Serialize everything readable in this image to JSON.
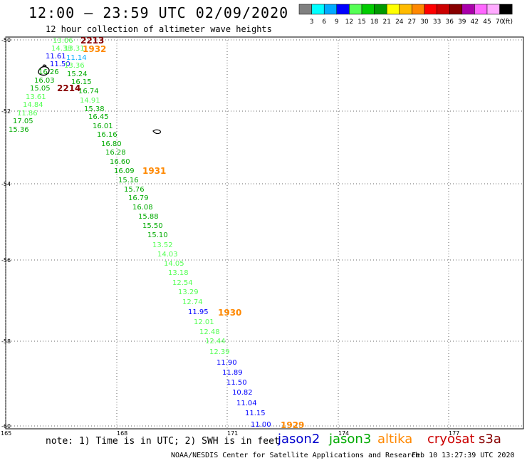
{
  "header": {
    "title": "12:00 – 23:59 UTC 02/09/2020",
    "subtitle": "12 hour collection of altimeter wave heights"
  },
  "colorbar": {
    "colors": [
      "#808080",
      "#00ffff",
      "#00aaff",
      "#0000ff",
      "#55ff55",
      "#00cc00",
      "#009900",
      "#ffff00",
      "#ffbb00",
      "#ff8800",
      "#ff0000",
      "#cc0000",
      "#880000",
      "#aa00aa",
      "#ff66ff",
      "#ffaaff",
      "#000000"
    ],
    "labels": [
      "3",
      "6",
      "9",
      "12",
      "15",
      "18",
      "21",
      "24",
      "27",
      "30",
      "33",
      "36",
      "39",
      "42",
      "45",
      "70",
      "(ft)"
    ]
  },
  "axes": {
    "lat_labels": [
      "-50",
      "-52",
      "-54",
      "-56",
      "-58",
      "-60"
    ],
    "lon_labels": [
      "165",
      "168",
      "171",
      "174",
      "177"
    ]
  },
  "track": {
    "points": [
      {
        "v": "13.06",
        "c": "#55ff55"
      },
      {
        "v": "14.38",
        "c": "#55ff55"
      },
      {
        "v": "11.61",
        "c": "#0000ff"
      },
      {
        "v": "11.50",
        "c": "#0000ff"
      },
      {
        "v": "16.26",
        "c": "#00aa00"
      },
      {
        "v": "16.03",
        "c": "#00aa00"
      },
      {
        "v": "15.05",
        "c": "#00aa00"
      },
      {
        "v": "13.61",
        "c": "#55ff55"
      },
      {
        "v": "14.84",
        "c": "#55ff55"
      },
      {
        "v": "11.86",
        "c": "#55ff55"
      },
      {
        "v": "17.05",
        "c": "#00aa00"
      },
      {
        "v": "15.36",
        "c": "#00aa00"
      },
      {
        "v": "13.31",
        "c": "#55ff55"
      },
      {
        "v": "11.14",
        "c": "#00aaff"
      },
      {
        "v": "13.36",
        "c": "#55ff55"
      },
      {
        "v": "15.24",
        "c": "#00aa00"
      },
      {
        "v": "16.15",
        "c": "#00aa00"
      },
      {
        "v": "16.74",
        "c": "#00aa00"
      },
      {
        "v": "14.91",
        "c": "#55ff55"
      },
      {
        "v": "15.38",
        "c": "#00aa00"
      },
      {
        "v": "16.45",
        "c": "#00aa00"
      },
      {
        "v": "16.01",
        "c": "#00aa00"
      },
      {
        "v": "16.16",
        "c": "#00aa00"
      },
      {
        "v": "16.80",
        "c": "#00aa00"
      },
      {
        "v": "16.28",
        "c": "#00aa00"
      },
      {
        "v": "16.60",
        "c": "#00aa00"
      },
      {
        "v": "16.09",
        "c": "#00aa00"
      },
      {
        "v": "15.16",
        "c": "#00aa00"
      },
      {
        "v": "15.76",
        "c": "#00aa00"
      },
      {
        "v": "16.79",
        "c": "#00aa00"
      },
      {
        "v": "16.08",
        "c": "#00aa00"
      },
      {
        "v": "15.88",
        "c": "#00aa00"
      },
      {
        "v": "15.50",
        "c": "#00aa00"
      },
      {
        "v": "15.10",
        "c": "#00aa00"
      },
      {
        "v": "13.52",
        "c": "#55ff55"
      },
      {
        "v": "14.03",
        "c": "#55ff55"
      },
      {
        "v": "14.05",
        "c": "#55ff55"
      },
      {
        "v": "13.18",
        "c": "#55ff55"
      },
      {
        "v": "12.54",
        "c": "#55ff55"
      },
      {
        "v": "13.29",
        "c": "#55ff55"
      },
      {
        "v": "12.74",
        "c": "#55ff55"
      },
      {
        "v": "11.95",
        "c": "#0000ff"
      },
      {
        "v": "12.01",
        "c": "#55ff55"
      },
      {
        "v": "12.48",
        "c": "#55ff55"
      },
      {
        "v": "12.44",
        "c": "#55ff55"
      },
      {
        "v": "12.39",
        "c": "#55ff55"
      },
      {
        "v": "11.90",
        "c": "#0000ff"
      },
      {
        "v": "11.89",
        "c": "#0000ff"
      },
      {
        "v": "11.50",
        "c": "#0000ff"
      },
      {
        "v": "10.82",
        "c": "#0000ff"
      },
      {
        "v": "11.04",
        "c": "#0000ff"
      },
      {
        "v": "11.15",
        "c": "#0000ff"
      },
      {
        "v": "11.00",
        "c": "#0000ff"
      }
    ],
    "times": [
      {
        "v": "2213",
        "c": "#880000"
      },
      {
        "v": "1932",
        "c": "#ff8800"
      },
      {
        "v": "2214",
        "c": "#880000"
      },
      {
        "v": "1931",
        "c": "#ff8800"
      },
      {
        "v": "1930",
        "c": "#ff8800"
      },
      {
        "v": "1929",
        "c": "#ff8800"
      }
    ]
  },
  "footer": {
    "note": "note: 1) Time is in UTC; 2) SWH is in feet",
    "satellites": [
      {
        "name": "jason2",
        "color": "#0000cc"
      },
      {
        "name": "jason3",
        "color": "#00aa00"
      },
      {
        "name": "altika",
        "color": "#ff8800"
      },
      {
        "name": "cryosat",
        "color": "#cc0000"
      },
      {
        "name": "s3a",
        "color": "#880000"
      }
    ],
    "credit": "NOAA/NESDIS Center for Satellite Applications and Research",
    "timestamp": "Feb 10 13:27:39 UTC 2020"
  }
}
